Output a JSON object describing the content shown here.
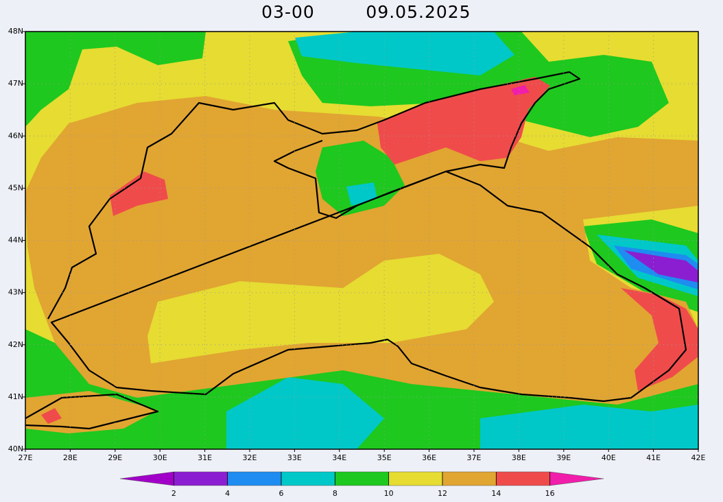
{
  "map": {
    "title": {
      "time": "03-00",
      "date": "09.05.2025"
    },
    "lon_ticks": [
      {
        "value": 27,
        "label": "27E"
      },
      {
        "value": 28,
        "label": "28E"
      },
      {
        "value": 29,
        "label": "29E"
      },
      {
        "value": 30,
        "label": "30E"
      },
      {
        "value": 31,
        "label": "31E"
      },
      {
        "value": 32,
        "label": "32E"
      },
      {
        "value": 33,
        "label": "33E"
      },
      {
        "value": 34,
        "label": "34E"
      },
      {
        "value": 35,
        "label": "35E"
      },
      {
        "value": 36,
        "label": "36E"
      },
      {
        "value": 37,
        "label": "37E"
      },
      {
        "value": 38,
        "label": "38E"
      },
      {
        "value": 39,
        "label": "39E"
      },
      {
        "value": 40,
        "label": "40E"
      },
      {
        "value": 41,
        "label": "41E"
      },
      {
        "value": 42,
        "label": "42E"
      }
    ],
    "lat_ticks": [
      {
        "value": 40,
        "label": "40N"
      },
      {
        "value": 41,
        "label": "41N"
      },
      {
        "value": 42,
        "label": "42N"
      },
      {
        "value": 43,
        "label": "43N"
      },
      {
        "value": 44,
        "label": "44N"
      },
      {
        "value": 45,
        "label": "45N"
      },
      {
        "value": 46,
        "label": "46N"
      },
      {
        "value": 47,
        "label": "47N"
      },
      {
        "value": 48,
        "label": "48N"
      }
    ],
    "colorbar": {
      "levels": [
        2,
        4,
        6,
        8,
        10,
        12,
        14,
        16
      ],
      "colors": [
        "#a000c8",
        "#8c1ed2",
        "#1e8cf0",
        "#00c8c8",
        "#1ec81e",
        "#e6dc32",
        "#e1a532",
        "#f04b4b",
        "#f01eaa"
      ]
    }
  }
}
